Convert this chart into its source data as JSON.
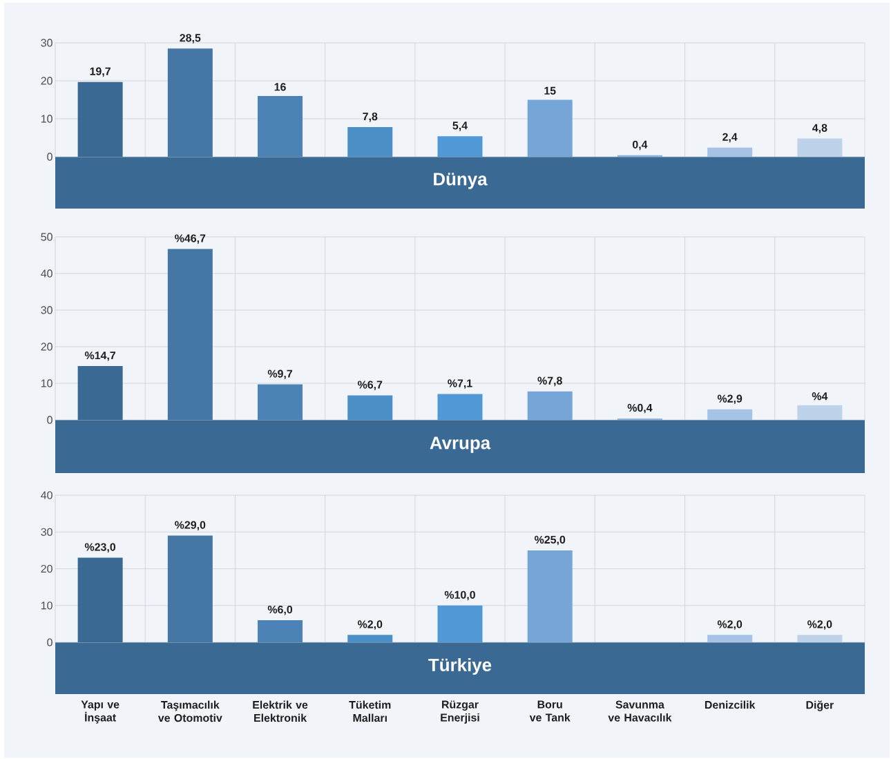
{
  "chart_data": [
    {
      "type": "bar",
      "title": "Dünya",
      "categories": [
        null,
        null,
        null,
        null,
        null,
        null,
        null,
        null,
        null
      ],
      "values": [
        19.7,
        28.5,
        16,
        7.8,
        5.4,
        15,
        0.4,
        2.4,
        4.8
      ],
      "value_labels": [
        "19,7",
        "28,5",
        "16",
        "7,8",
        "5,4",
        "15",
        "0,4",
        "2,4",
        "4,8"
      ],
      "colors": [
        "#3a6a93",
        "#4477a4",
        "#4d82b6",
        "#4d8fc7",
        "#5198d6",
        "#76a6d8",
        "#8db1dc",
        "#a6c3e5",
        "#bed3ea"
      ],
      "ylim": [
        0,
        30
      ],
      "yticks": [
        0,
        10,
        20,
        30
      ],
      "grid": true,
      "tick_labels": "y"
    },
    {
      "type": "bar",
      "title": "Avrupa",
      "categories": [
        null,
        null,
        null,
        null,
        null,
        null,
        null,
        null,
        null
      ],
      "values": [
        14.7,
        46.7,
        9.7,
        6.7,
        7.1,
        7.8,
        0.4,
        2.9,
        4
      ],
      "value_labels": [
        "%14,7",
        "%46,7",
        "%9,7",
        "%6,7",
        "%7,1",
        "%7,8",
        "%0,4",
        "%2,9",
        "%4"
      ],
      "colors": [
        "#3a6a93",
        "#4477a4",
        "#4d82b6",
        "#4d8fc7",
        "#5198d6",
        "#76a6d8",
        "#8db1dc",
        "#a6c3e5",
        "#bed3ea"
      ],
      "ylim": [
        0,
        50
      ],
      "yticks": [
        0,
        10,
        20,
        30,
        40,
        50
      ],
      "grid": true,
      "tick_labels": "y"
    },
    {
      "type": "bar",
      "title": "Türkiye",
      "categories": [
        "Yapı ve İnşaat",
        "Taşımacılık ve Otomotiv",
        "Elektrik ve Elektronik",
        "Tüketim Malları",
        "Rüzgar Enerjisi",
        "Boru ve Tank",
        "Savunma ve Havacılık",
        "Denizcilik",
        "Diğer"
      ],
      "values": [
        23,
        29,
        6,
        2,
        10,
        25,
        null,
        2,
        2
      ],
      "value_labels": [
        "%23,0",
        "%29,0",
        "%6,0",
        "%2,0",
        "%10,0",
        "%25,0",
        null,
        "%2,0",
        "%2,0"
      ],
      "colors": [
        "#3a6a93",
        "#4477a4",
        "#4d82b6",
        "#4d8fc7",
        "#5198d6",
        "#76a6d8",
        "#8db1dc",
        "#a6c3e5",
        "#bed3ea"
      ],
      "ylim": [
        0,
        40
      ],
      "yticks": [
        0,
        10,
        20,
        30,
        40
      ],
      "grid": true
    }
  ]
}
